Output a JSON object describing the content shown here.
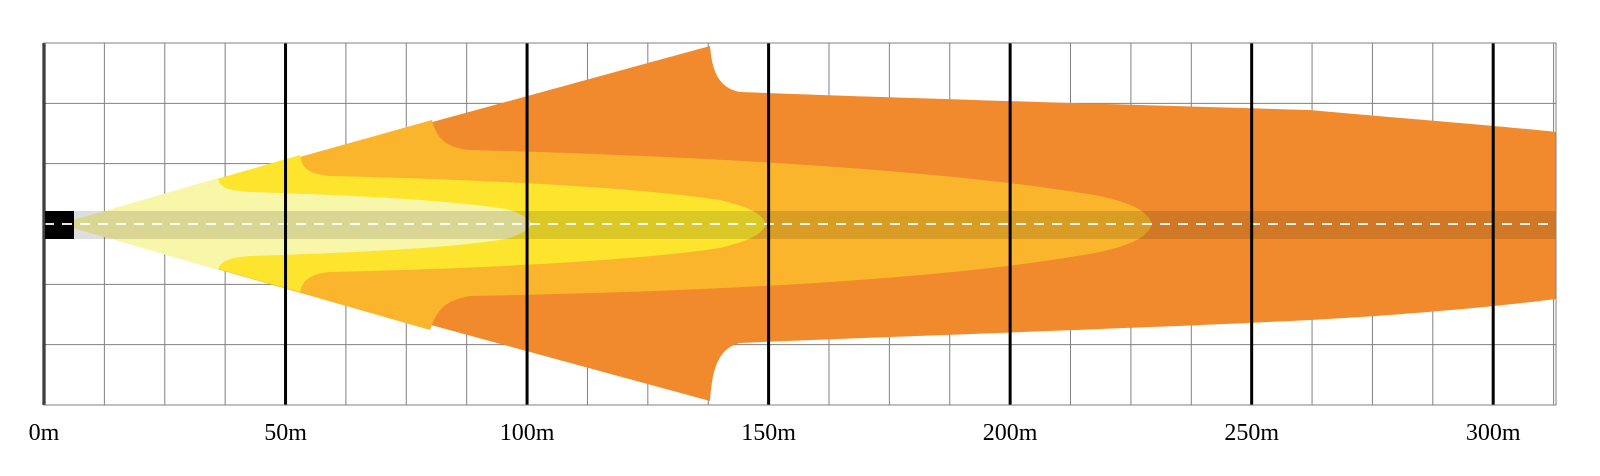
{
  "diagram": {
    "x_axis": {
      "unit": "m",
      "min": 0,
      "max": 313,
      "major_step": 50,
      "minor_step": 12.5,
      "tick_labels": [
        "0m",
        "50m",
        "100m",
        "150m",
        "200m",
        "250m",
        "300m"
      ]
    },
    "beam_zones": [
      {
        "name": "outer",
        "color": "#f08a2d",
        "reach_m": 313
      },
      {
        "name": "mid",
        "color": "#fab52c",
        "reach_m": 229
      },
      {
        "name": "inner",
        "color": "#fce52c",
        "reach_m": 149
      },
      {
        "name": "core",
        "color": "#f8f6a8",
        "reach_m": 100
      }
    ],
    "colors": {
      "grid_minor": "#808080",
      "grid_major": "#000000",
      "axis_band": "#000000",
      "center_dash": "#ffffff"
    }
  }
}
